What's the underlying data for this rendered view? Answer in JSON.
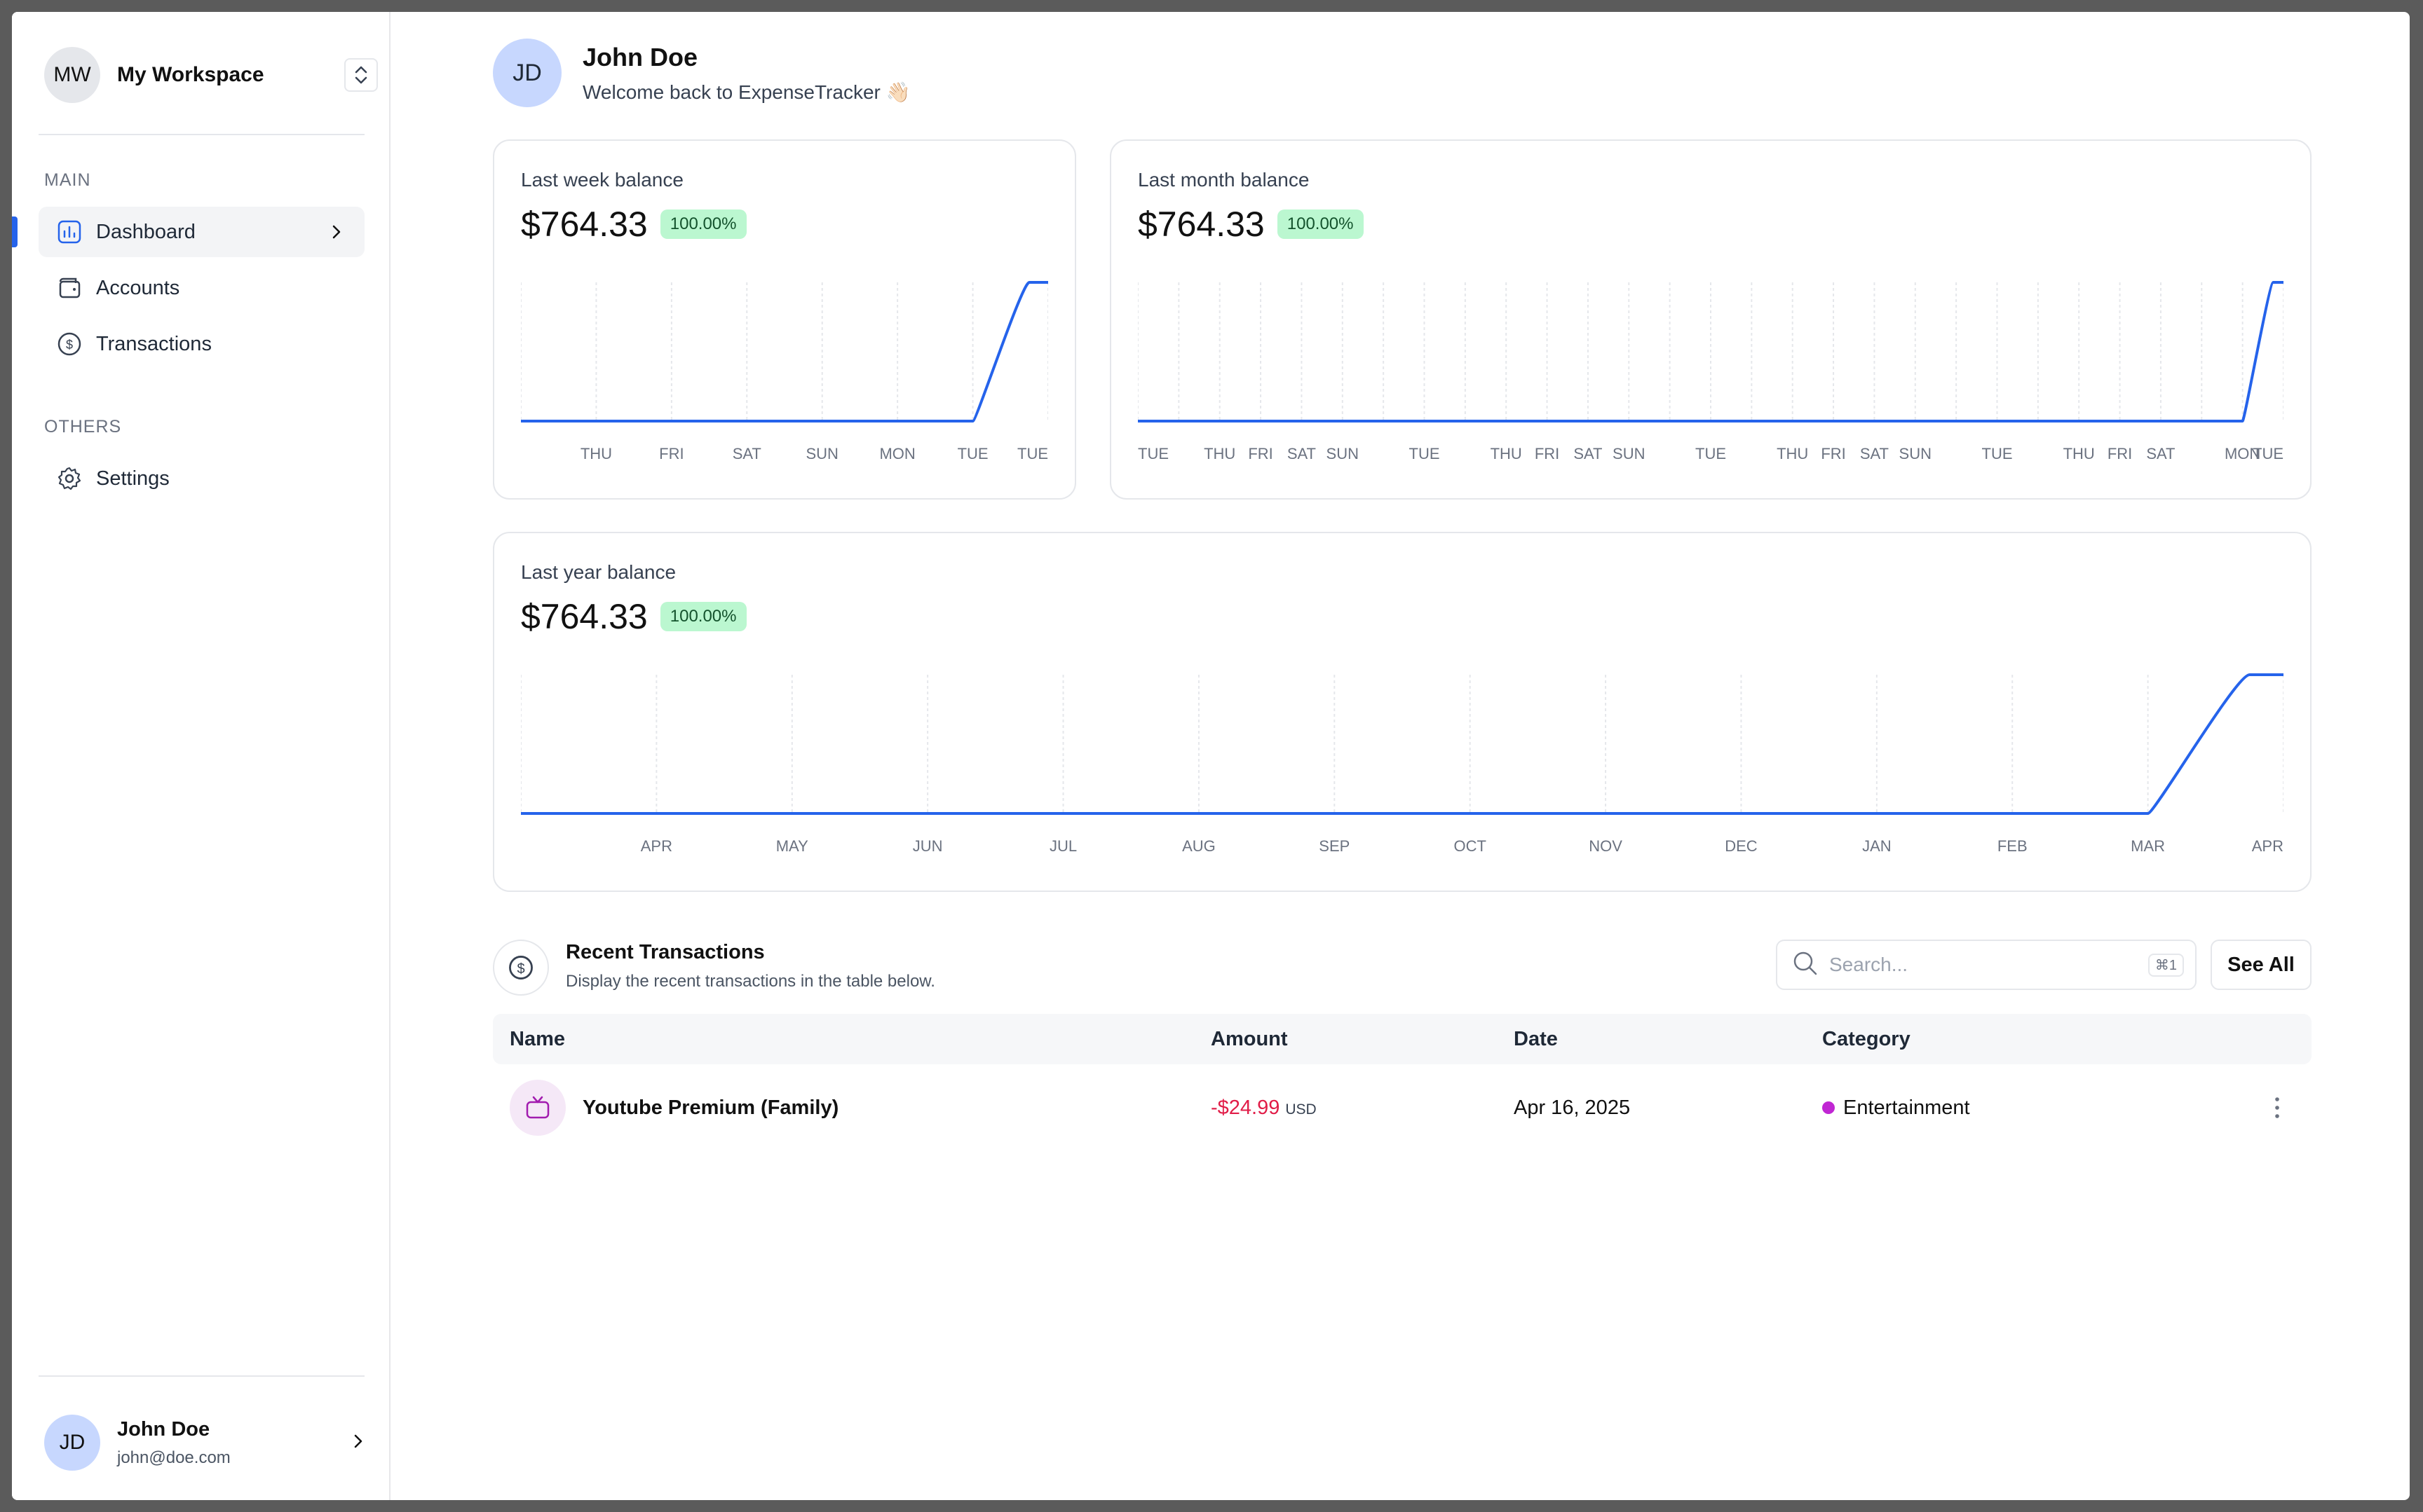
{
  "colors": {
    "accent": "#2563eb",
    "positive_bg": "#bbf7d0",
    "negative": "#e11d48",
    "category_entertainment": "#c026d3"
  },
  "sidebar": {
    "workspace": {
      "initials": "MW",
      "name": "My Workspace",
      "switch_icon": "chevron-up-down-icon"
    },
    "sections": [
      {
        "label": "MAIN",
        "items": [
          {
            "label": "Dashboard",
            "icon": "chart-icon",
            "active": true
          },
          {
            "label": "Accounts",
            "icon": "wallet-icon"
          },
          {
            "label": "Transactions",
            "icon": "dollar-circle-icon"
          }
        ]
      },
      {
        "label": "OTHERS",
        "items": [
          {
            "label": "Settings",
            "icon": "gear-icon"
          }
        ]
      }
    ],
    "user": {
      "initials": "JD",
      "name": "John Doe",
      "email": "john@doe.com"
    }
  },
  "header": {
    "initials": "JD",
    "name": "John Doe",
    "welcome": "Welcome back to ExpenseTracker 👋🏻"
  },
  "cards": {
    "week": {
      "title": "Last week balance",
      "value": "$764.33",
      "badge": "100.00%"
    },
    "month": {
      "title": "Last month balance",
      "value": "$764.33",
      "badge": "100.00%"
    },
    "year": {
      "title": "Last year balance",
      "value": "$764.33",
      "badge": "100.00%"
    }
  },
  "chart_data": [
    {
      "type": "line",
      "title": "Last week balance",
      "x": [
        "",
        "THU",
        "FRI",
        "SAT",
        "SUN",
        "MON",
        "TUE",
        "TUE"
      ],
      "values": [
        0,
        0,
        0,
        0,
        0,
        0,
        0,
        764.33
      ]
    },
    {
      "type": "line",
      "title": "Last month balance",
      "x": [
        "TUE",
        "",
        "THU",
        "FRI",
        "SAT",
        "SUN",
        "",
        "TUE",
        "",
        "THU",
        "FRI",
        "SAT",
        "SUN",
        "",
        "TUE",
        "",
        "THU",
        "FRI",
        "SAT",
        "SUN",
        "",
        "TUE",
        "",
        "THU",
        "FRI",
        "SAT",
        "",
        "MON",
        "TUE"
      ],
      "values": [
        0,
        0,
        0,
        0,
        0,
        0,
        0,
        0,
        0,
        0,
        0,
        0,
        0,
        0,
        0,
        0,
        0,
        0,
        0,
        0,
        0,
        0,
        0,
        0,
        0,
        0,
        0,
        0,
        764.33
      ]
    },
    {
      "type": "line",
      "title": "Last year balance",
      "x": [
        "",
        "APR",
        "MAY",
        "JUN",
        "JUL",
        "AUG",
        "SEP",
        "OCT",
        "NOV",
        "DEC",
        "JAN",
        "FEB",
        "MAR",
        "APR"
      ],
      "values": [
        0,
        0,
        0,
        0,
        0,
        0,
        0,
        0,
        0,
        0,
        0,
        0,
        0,
        764.33
      ]
    }
  ],
  "transactions": {
    "title": "Recent Transactions",
    "subtitle": "Display the recent transactions in the table below.",
    "search_placeholder": "Search...",
    "search_kbd": "⌘1",
    "see_all": "See All",
    "columns": [
      "Name",
      "Amount",
      "Date",
      "Category"
    ],
    "rows": [
      {
        "name": "Youtube Premium (Family)",
        "icon": "tv-icon",
        "amount": "-$24.99",
        "currency": "USD",
        "date": "Apr 16, 2025",
        "category": "Entertainment"
      }
    ]
  }
}
